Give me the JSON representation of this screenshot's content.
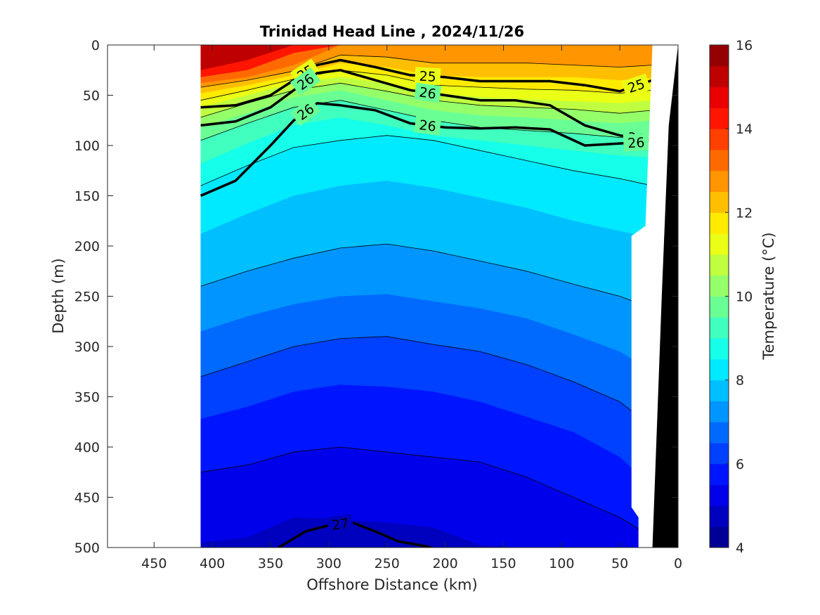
{
  "chart_data": {
    "type": "heatmap",
    "subtype": "filled-contour section with isopycnal overlays",
    "title": "Trinidad Head Line , 2024/11/26",
    "xlabel": "Offshore Distance (km)",
    "ylabel": "Depth (m)",
    "xlim": [
      490,
      0
    ],
    "x_reversed": true,
    "ylim": [
      0,
      500
    ],
    "y_reversed": true,
    "x_ticks": [
      "450",
      "400",
      "350",
      "300",
      "250",
      "200",
      "150",
      "100",
      "50",
      "0"
    ],
    "y_ticks": [
      "0",
      "50",
      "100",
      "150",
      "200",
      "250",
      "300",
      "350",
      "400",
      "450",
      "500"
    ],
    "colorbar": {
      "label": "Temperature (°C)",
      "range": [
        4,
        16
      ],
      "step": 0.5,
      "ticks": [
        "4",
        "6",
        "8",
        "10",
        "12",
        "14",
        "16"
      ],
      "colormap": "jet"
    },
    "data_extent_km": [
      22,
      410
    ],
    "temperature_levels": [
      {
        "temp": 5.0,
        "depth": [
          495,
          490,
          470,
          472,
          475,
          480,
          498,
          500,
          500,
          500,
          500
        ]
      },
      {
        "temp": 5.5,
        "depth": [
          425,
          418,
          405,
          400,
          405,
          410,
          415,
          430,
          450,
          470,
          490
        ]
      },
      {
        "temp": 6.0,
        "depth": [
          372,
          360,
          345,
          338,
          340,
          345,
          355,
          370,
          385,
          410,
          440
        ]
      },
      {
        "temp": 6.5,
        "depth": [
          330,
          315,
          300,
          292,
          290,
          298,
          305,
          318,
          335,
          355,
          380
        ]
      },
      {
        "temp": 7.0,
        "depth": [
          285,
          270,
          258,
          250,
          248,
          255,
          262,
          272,
          288,
          305,
          325
        ]
      },
      {
        "temp": 7.5,
        "depth": [
          240,
          225,
          212,
          202,
          198,
          205,
          215,
          225,
          238,
          250,
          262
        ]
      },
      {
        "temp": 8.0,
        "depth": [
          188,
          168,
          150,
          140,
          135,
          142,
          152,
          162,
          175,
          185,
          192
        ]
      },
      {
        "temp": 8.5,
        "depth": [
          140,
          120,
          102,
          95,
          90,
          95,
          105,
          115,
          125,
          133,
          140
        ]
      },
      {
        "temp": 9.0,
        "depth": [
          118,
          98,
          80,
          72,
          80,
          90,
          95,
          100,
          105,
          110,
          112
        ]
      },
      {
        "temp": 9.5,
        "depth": [
          95,
          78,
          62,
          55,
          65,
          75,
          82,
          85,
          88,
          92,
          90
        ]
      },
      {
        "temp": 10.0,
        "depth": [
          82,
          68,
          52,
          45,
          55,
          65,
          70,
          72,
          75,
          78,
          75
        ]
      },
      {
        "temp": 10.5,
        "depth": [
          72,
          58,
          45,
          38,
          46,
          55,
          60,
          62,
          64,
          68,
          65
        ]
      },
      {
        "temp": 11.0,
        "depth": [
          62,
          50,
          38,
          32,
          38,
          48,
          52,
          54,
          56,
          58,
          55
        ]
      },
      {
        "temp": 11.5,
        "depth": [
          55,
          45,
          34,
          25,
          30,
          40,
          42,
          44,
          45,
          48,
          45
        ]
      },
      {
        "temp": 12.0,
        "depth": [
          48,
          40,
          30,
          18,
          22,
          30,
          32,
          32,
          32,
          35,
          33
        ]
      },
      {
        "temp": 12.5,
        "depth": [
          42,
          35,
          26,
          10,
          12,
          18,
          18,
          18,
          20,
          22,
          20
        ]
      },
      {
        "temp": 13.0,
        "depth": [
          38,
          32,
          20,
          0,
          0,
          0,
          0,
          0,
          0,
          0,
          0
        ]
      },
      {
        "temp": 14.0,
        "depth": [
          32,
          25,
          8,
          0,
          0,
          0,
          0,
          0,
          0,
          0,
          0
        ]
      },
      {
        "temp": 15.0,
        "depth": [
          25,
          15,
          0,
          0,
          0,
          0,
          0,
          0,
          0,
          0,
          0
        ]
      }
    ],
    "temperature_levels_x_km": [
      410,
      370,
      330,
      290,
      250,
      210,
      170,
      130,
      90,
      50,
      22
    ],
    "density_contours": [
      {
        "label": "25",
        "bold": true,
        "x": [
          410,
          380,
          350,
          330,
          310,
          290,
          260,
          230,
          200,
          170,
          140,
          110,
          80,
          50,
          22
        ],
        "depth": [
          62,
          60,
          50,
          35,
          20,
          15,
          22,
          30,
          32,
          36,
          36,
          36,
          40,
          46,
          35
        ]
      },
      {
        "label": "26",
        "bold": true,
        "x": [
          410,
          380,
          350,
          330,
          310,
          290,
          260,
          230,
          200,
          170,
          140,
          110,
          80,
          50,
          22
        ],
        "depth": [
          80,
          76,
          62,
          45,
          28,
          25,
          35,
          45,
          50,
          55,
          55,
          60,
          80,
          90,
          95
        ]
      },
      {
        "label": "26",
        "bold": true,
        "x": [
          410,
          380,
          350,
          330,
          310,
          290,
          260,
          230,
          200,
          170,
          140,
          110,
          80,
          50,
          22
        ],
        "depth": [
          150,
          135,
          100,
          75,
          58,
          60,
          65,
          78,
          82,
          83,
          82,
          84,
          100,
          98,
          96
        ]
      },
      {
        "label": "27",
        "bold": true,
        "x": [
          343,
          320,
          300,
          280,
          260,
          240,
          220,
          212
        ],
        "depth": [
          500,
          484,
          478,
          475,
          484,
          494,
          498,
          500
        ]
      }
    ],
    "density_labels_shown": [
      "25",
      "25",
      "25",
      "26",
      "26",
      "26",
      "27"
    ]
  }
}
